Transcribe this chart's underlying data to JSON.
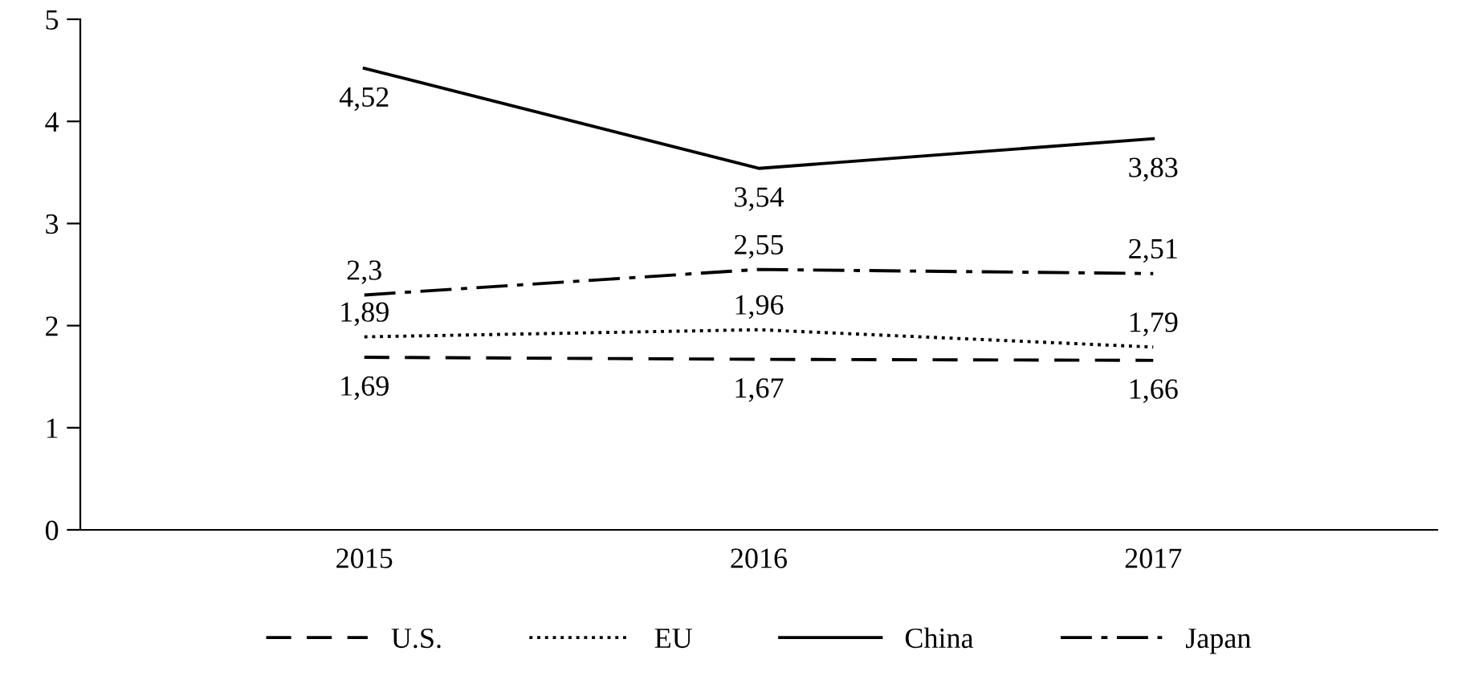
{
  "chart_data": {
    "type": "line",
    "categories": [
      "2015",
      "2016",
      "2017"
    ],
    "series": [
      {
        "name": "U.S.",
        "color": "#000000",
        "line_style": "dashed",
        "values": [
          1.69,
          1.67,
          1.66
        ],
        "value_labels": [
          "1,69",
          "1,67",
          "1,66"
        ]
      },
      {
        "name": "EU",
        "color": "#000000",
        "line_style": "dotted",
        "values": [
          1.89,
          1.96,
          1.79
        ],
        "value_labels": [
          "1,89",
          "1,96",
          "1,79"
        ]
      },
      {
        "name": "China",
        "color": "#000000",
        "line_style": "solid",
        "values": [
          4.52,
          3.54,
          3.83
        ],
        "value_labels": [
          "4,52",
          "3,54",
          "3,83"
        ]
      },
      {
        "name": "Japan",
        "color": "#000000",
        "line_style": "dashdot",
        "values": [
          2.3,
          2.55,
          2.51
        ],
        "value_labels": [
          "2,3",
          "2,55",
          "2,51"
        ]
      }
    ],
    "ylim": [
      0,
      5
    ],
    "yticks": [
      0,
      1,
      2,
      3,
      4,
      5
    ],
    "grid": false,
    "legend": "bottom",
    "marker": "none"
  }
}
